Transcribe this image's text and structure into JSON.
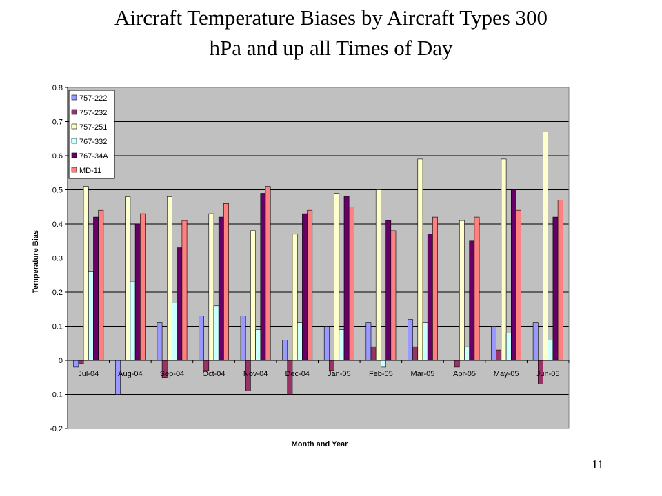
{
  "slide": {
    "title_line1": "Aircraft Temperature Biases by Aircraft Types 300",
    "title_line2": "hPa and up all Times of Day",
    "page_number": "11"
  },
  "chart_data": {
    "type": "bar",
    "title": "Aircraft Temperature Biases by Aircraft Types 300 hPa and up all Times of Day",
    "xlabel": "Month and Year",
    "ylabel": "Temperature Bias",
    "ylim": [
      -0.2,
      0.8
    ],
    "ytick_step": 0.1,
    "yticks": [
      "-0.2",
      "-0.1",
      "0",
      "0.1",
      "0.2",
      "0.3",
      "0.4",
      "0.5",
      "0.6",
      "0.7",
      "0.8"
    ],
    "grid": true,
    "legend_position": "top-left",
    "plot_background": "#c0c0c0",
    "categories": [
      "Jul-04",
      "Aug-04",
      "Sep-04",
      "Oct-04",
      "Nov-04",
      "Dec-04",
      "Jan-05",
      "Feb-05",
      "Mar-05",
      "Apr-05",
      "May-05",
      "Jun-05"
    ],
    "series": [
      {
        "name": "757-222",
        "color": "#9999ff",
        "values": [
          -0.02,
          -0.1,
          0.11,
          0.13,
          0.13,
          0.06,
          0.1,
          0.11,
          0.12,
          0.0,
          0.1,
          0.11
        ]
      },
      {
        "name": "757-232",
        "color": "#993366",
        "values": [
          -0.01,
          0.0,
          -0.05,
          -0.03,
          -0.09,
          -0.1,
          -0.03,
          0.04,
          0.04,
          -0.02,
          0.03,
          -0.07
        ]
      },
      {
        "name": "757-251",
        "color": "#ffffcc",
        "values": [
          0.51,
          0.48,
          0.48,
          0.43,
          0.38,
          0.37,
          0.49,
          0.5,
          0.59,
          0.41,
          0.59,
          0.67
        ]
      },
      {
        "name": "767-332",
        "color": "#ccffff",
        "values": [
          0.26,
          0.23,
          0.17,
          0.16,
          0.09,
          0.11,
          0.09,
          -0.02,
          0.11,
          0.04,
          0.08,
          0.06
        ]
      },
      {
        "name": "767-34A",
        "color": "#660066",
        "values": [
          0.42,
          0.4,
          0.33,
          0.42,
          0.49,
          0.43,
          0.48,
          0.41,
          0.37,
          0.35,
          0.5,
          0.42
        ]
      },
      {
        "name": "MD-11",
        "color": "#ff8080",
        "values": [
          0.44,
          0.43,
          0.41,
          0.46,
          0.51,
          0.44,
          0.45,
          0.38,
          0.42,
          0.42,
          0.44,
          0.47
        ]
      }
    ]
  }
}
